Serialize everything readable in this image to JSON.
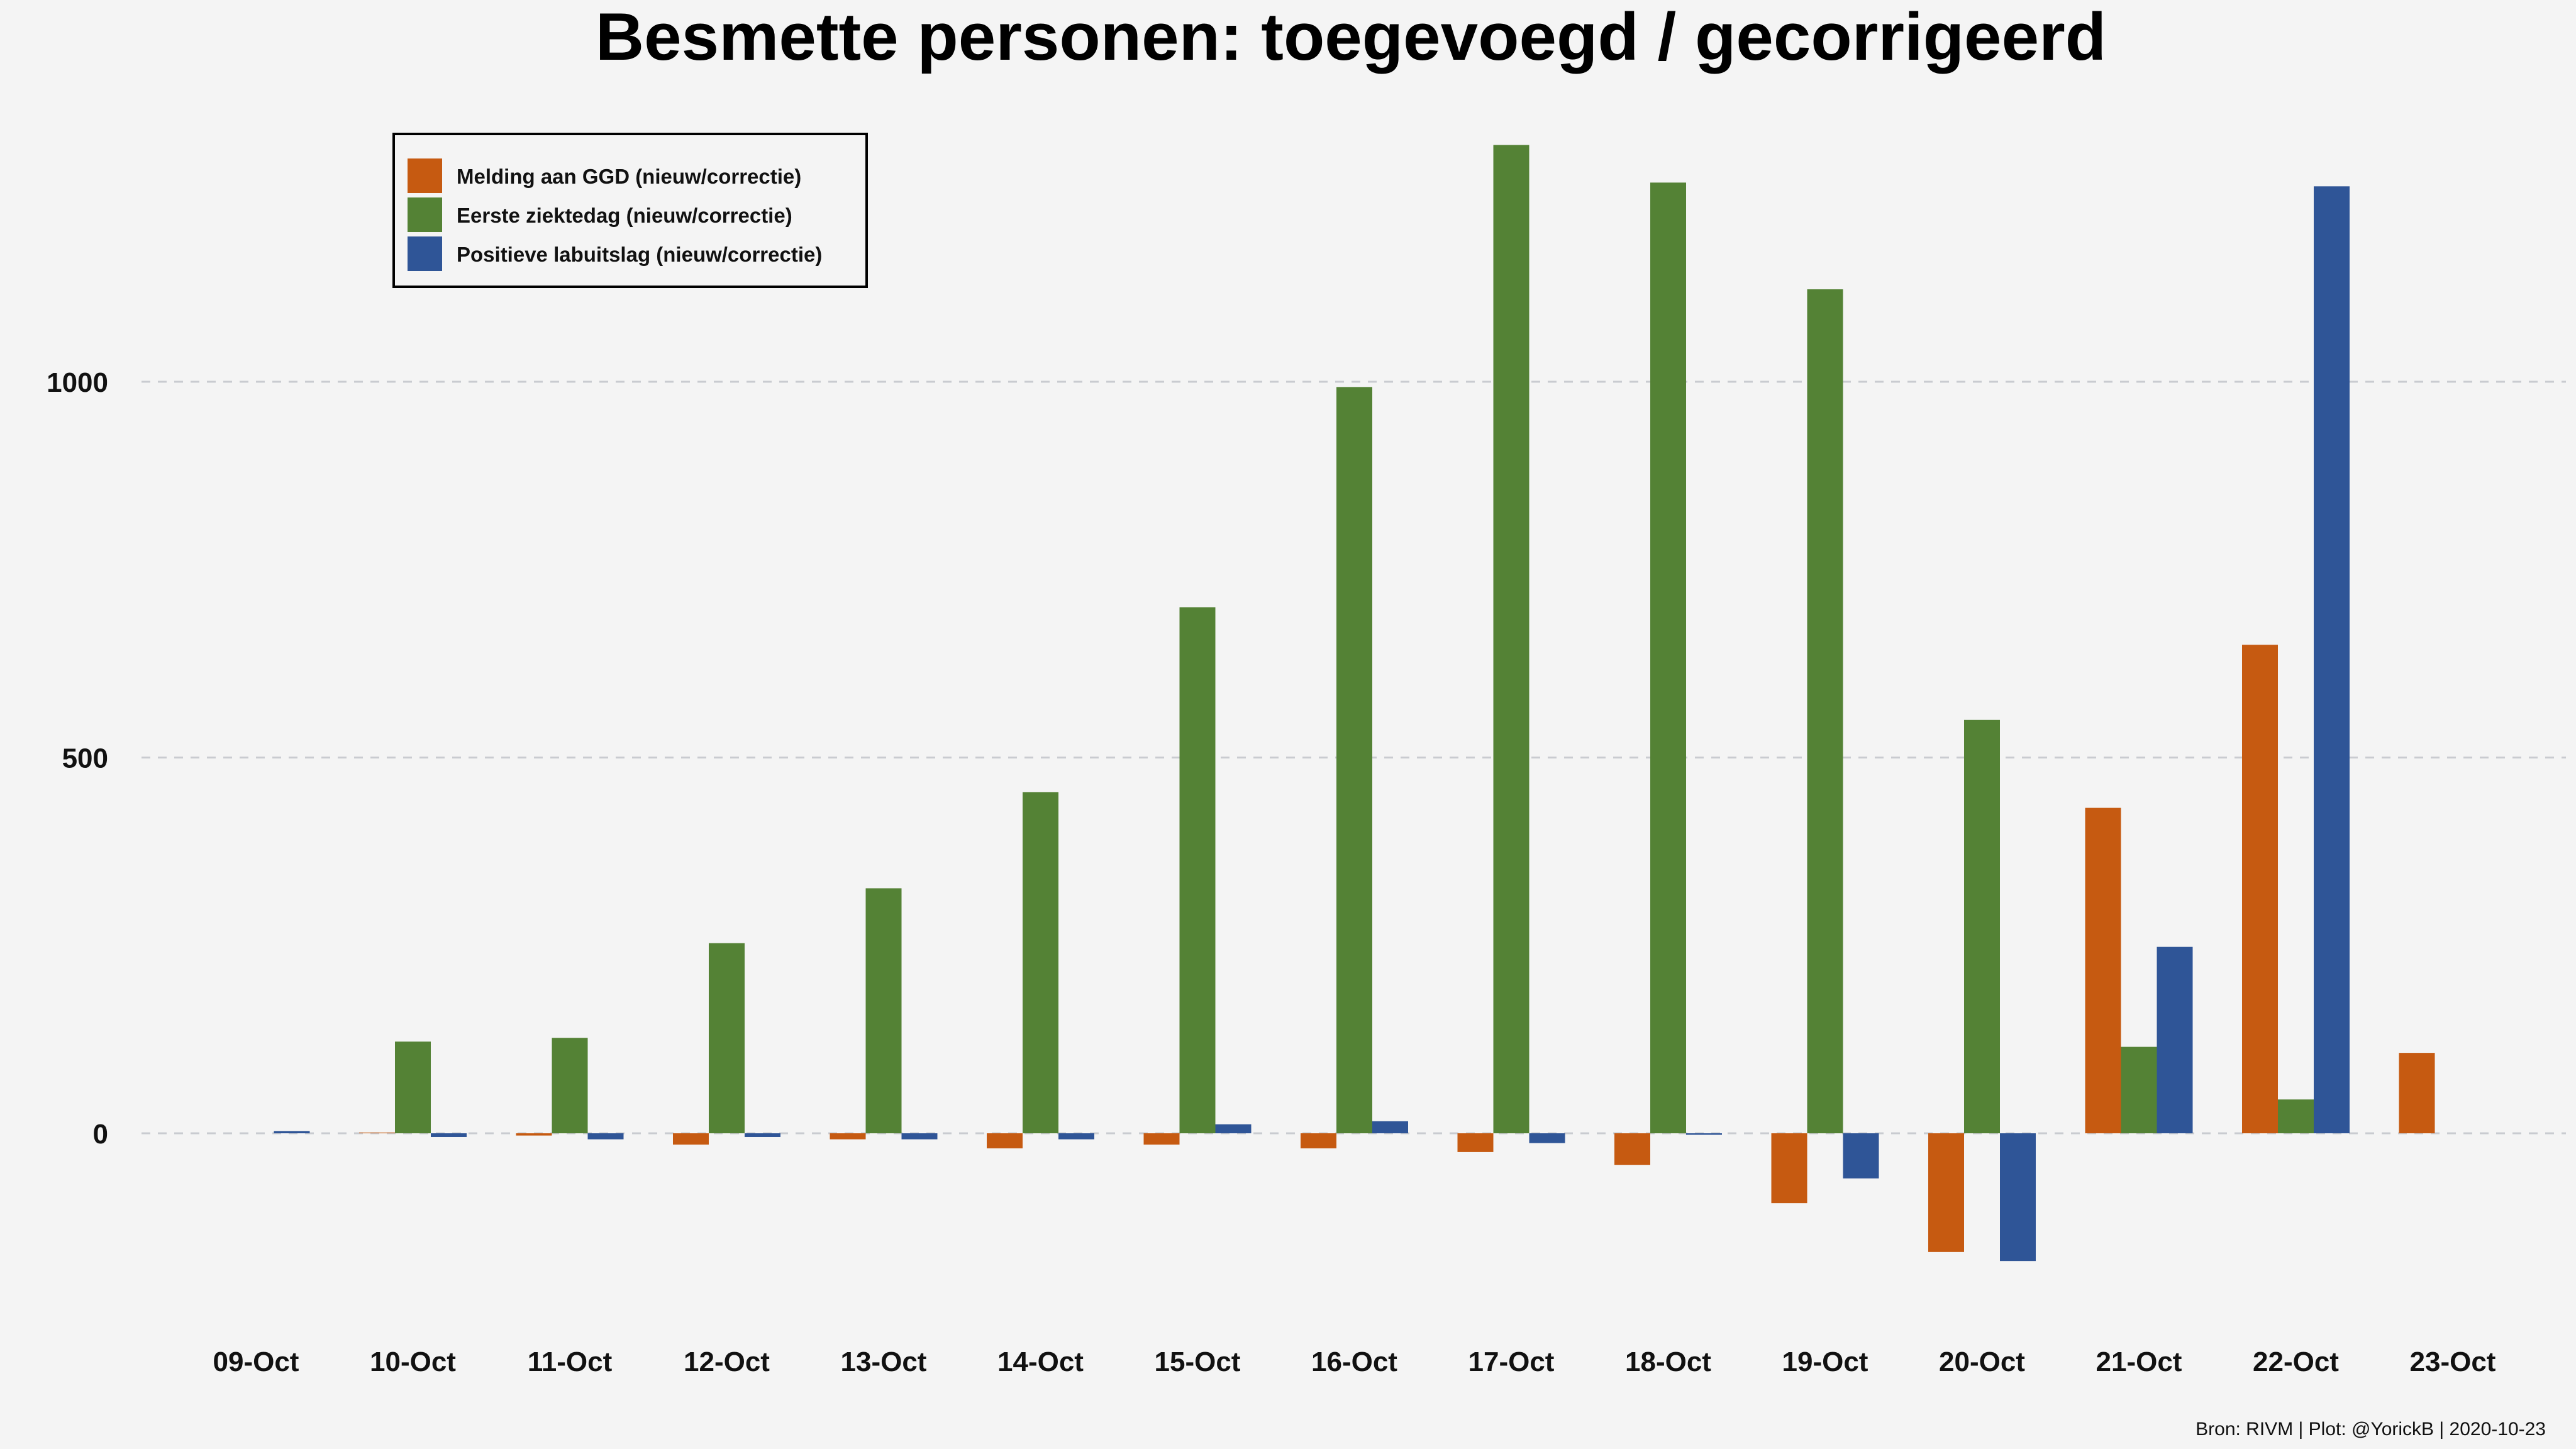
{
  "chart_data": {
    "type": "bar",
    "title": "Besmette personen: toegevoegd / gecorrigeerd",
    "xlabel": "",
    "ylabel": "",
    "categories": [
      "09-Oct",
      "10-Oct",
      "11-Oct",
      "12-Oct",
      "13-Oct",
      "14-Oct",
      "15-Oct",
      "16-Oct",
      "17-Oct",
      "18-Oct",
      "19-Oct",
      "20-Oct",
      "21-Oct",
      "22-Oct",
      "23-Oct"
    ],
    "series": [
      {
        "name": "Melding aan GGD (nieuw/correctie)",
        "color": "#c65a11",
        "values": [
          0,
          1,
          -3,
          -15,
          -8,
          -20,
          -15,
          -20,
          -25,
          -42,
          -93,
          -158,
          433,
          650,
          107
        ]
      },
      {
        "name": "Eerste ziektedag (nieuw/correctie)",
        "color": "#548235",
        "values": [
          0,
          122,
          127,
          253,
          326,
          454,
          700,
          993,
          1315,
          1265,
          1123,
          550,
          115,
          45,
          0
        ]
      },
      {
        "name": "Positieve labuitslag (nieuw/correctie)",
        "color": "#2f5597",
        "values": [
          3,
          -5,
          -8,
          -5,
          -8,
          -8,
          12,
          16,
          -13,
          -2,
          -60,
          -170,
          248,
          1260,
          0
        ]
      }
    ],
    "yticks": [
      0,
      500,
      1000
    ],
    "ytick_labels": [
      "0",
      "500",
      "1000"
    ],
    "ylim": [
      -240,
      1380
    ],
    "grid": true,
    "grid_style": "dashed horizontal",
    "legend_position": "top-left",
    "caption": "Bron: RIVM | Plot: @YorickB |  2020-10-23"
  }
}
